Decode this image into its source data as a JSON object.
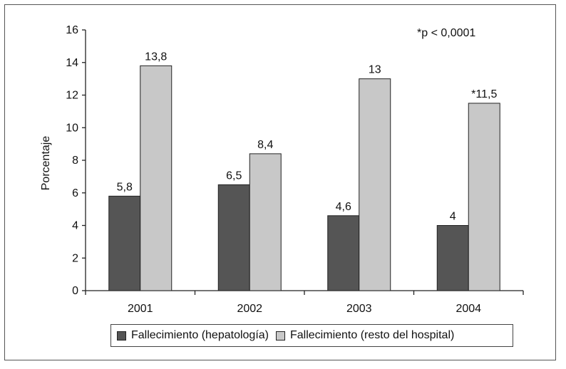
{
  "chart_data": {
    "type": "bar",
    "categories": [
      "2001",
      "2002",
      "2003",
      "2004"
    ],
    "series": [
      {
        "name": "Fallecimiento (hepatología)",
        "values": [
          5.8,
          6.5,
          4.6,
          4
        ],
        "labels": [
          "5,8",
          "6,5",
          "4,6",
          "4"
        ],
        "color": "#555555"
      },
      {
        "name": "Fallecimiento (resto del hospital)",
        "values": [
          13.8,
          8.4,
          13,
          11.5
        ],
        "labels": [
          "13,8",
          "8,4",
          "13",
          "*11,5"
        ],
        "color": "#c8c8c8"
      }
    ],
    "title": "",
    "xlabel": "",
    "ylabel": "Porcentaje",
    "ylim": [
      0,
      16
    ],
    "yticks": [
      0,
      2,
      4,
      6,
      8,
      10,
      12,
      14,
      16
    ],
    "annotation": "*p < 0,0001",
    "grid": false,
    "legend_position": "bottom"
  }
}
